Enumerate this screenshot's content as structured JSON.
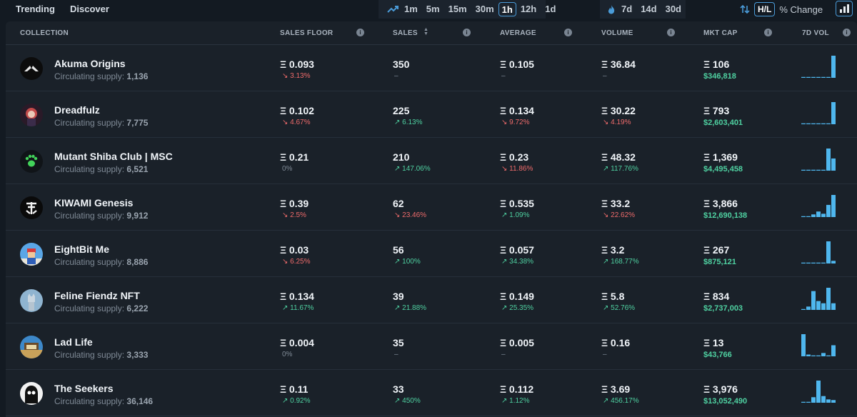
{
  "nav": {
    "trending": "Trending",
    "discover": "Discover"
  },
  "timeframes": [
    "1m",
    "5m",
    "15m",
    "30m",
    "1h",
    "12h",
    "1d"
  ],
  "timeframes_active": "1h",
  "periods": [
    "7d",
    "14d",
    "30d"
  ],
  "controls": {
    "hl": "H/L",
    "pct_change": "% Change"
  },
  "colors": {
    "up": "#4fd1a1",
    "down": "#ef6b6b",
    "accent": "#4a9bd8",
    "spark": "#4fb7ee"
  },
  "columns": {
    "collection": "COLLECTION",
    "sales_floor": "SALES FLOOR",
    "sales": "SALES",
    "average": "AVERAGE",
    "volume": "VOLUME",
    "mkt_cap": "MKT CAP",
    "vol7d": "7D VOL"
  },
  "supply_label": "Circulating supply:",
  "rows": [
    {
      "name": "Akuma Origins",
      "supply": "1,136",
      "floor": "Ξ 0.093",
      "floor_chg": "↘ 3.13%",
      "floor_dir": "down",
      "sales": "350",
      "sales_chg": "–",
      "sales_dir": "flat",
      "avg": "Ξ 0.105",
      "avg_chg": "–",
      "avg_dir": "flat",
      "vol": "Ξ 36.84",
      "vol_chg": "–",
      "vol_dir": "flat",
      "cap": "Ξ 106",
      "cap_usd": "$346,818",
      "spark": [
        0.04,
        0.04,
        0.04,
        0.04,
        0.04,
        0.04,
        1.0
      ]
    },
    {
      "name": "Dreadfulz",
      "supply": "7,775",
      "floor": "Ξ 0.102",
      "floor_chg": "↘ 4.67%",
      "floor_dir": "down",
      "sales": "225",
      "sales_chg": "↗ 6.13%",
      "sales_dir": "up",
      "avg": "Ξ 0.134",
      "avg_chg": "↘ 9.72%",
      "avg_dir": "down",
      "vol": "Ξ 30.22",
      "vol_chg": "↘ 4.19%",
      "vol_dir": "down",
      "cap": "Ξ 793",
      "cap_usd": "$2,603,401",
      "spark": [
        0.04,
        0.04,
        0.04,
        0.04,
        0.04,
        0.04,
        1.0
      ]
    },
    {
      "name": "Mutant Shiba Club | MSC",
      "supply": "6,521",
      "floor": "Ξ 0.21",
      "floor_chg": "0%",
      "floor_dir": "flat",
      "sales": "210",
      "sales_chg": "↗ 147.06%",
      "sales_dir": "up",
      "avg": "Ξ 0.23",
      "avg_chg": "↘ 11.86%",
      "avg_dir": "down",
      "vol": "Ξ 48.32",
      "vol_chg": "↗ 117.76%",
      "vol_dir": "up",
      "cap": "Ξ 1,369",
      "cap_usd": "$4,495,458",
      "spark": [
        0.04,
        0.04,
        0.04,
        0.04,
        0.04,
        1.0,
        0.55
      ]
    },
    {
      "name": "KIWAMI Genesis",
      "supply": "9,912",
      "floor": "Ξ 0.39",
      "floor_chg": "↘ 2.5%",
      "floor_dir": "down",
      "sales": "62",
      "sales_chg": "↘ 23.46%",
      "sales_dir": "down",
      "avg": "Ξ 0.535",
      "avg_chg": "↗ 1.09%",
      "avg_dir": "up",
      "vol": "Ξ 33.2",
      "vol_chg": "↘ 22.62%",
      "vol_dir": "down",
      "cap": "Ξ 3,866",
      "cap_usd": "$12,690,138",
      "spark": [
        0.04,
        0.04,
        0.12,
        0.25,
        0.15,
        0.55,
        1.0
      ]
    },
    {
      "name": "EightBit Me",
      "supply": "8,886",
      "floor": "Ξ 0.03",
      "floor_chg": "↘ 6.25%",
      "floor_dir": "down",
      "sales": "56",
      "sales_chg": "↗ 100%",
      "sales_dir": "up",
      "avg": "Ξ 0.057",
      "avg_chg": "↗ 34.38%",
      "avg_dir": "up",
      "vol": "Ξ 3.2",
      "vol_chg": "↗ 168.77%",
      "vol_dir": "up",
      "cap": "Ξ 267",
      "cap_usd": "$875,121",
      "spark": [
        0.04,
        0.04,
        0.04,
        0.04,
        0.04,
        1.0,
        0.12
      ]
    },
    {
      "name": "Feline Fiendz NFT",
      "supply": "6,222",
      "floor": "Ξ 0.134",
      "floor_chg": "↗ 11.67%",
      "floor_dir": "up",
      "sales": "39",
      "sales_chg": "↗ 21.88%",
      "sales_dir": "up",
      "avg": "Ξ 0.149",
      "avg_chg": "↗ 25.35%",
      "avg_dir": "up",
      "vol": "Ξ 5.8",
      "vol_chg": "↗ 52.76%",
      "vol_dir": "up",
      "cap": "Ξ 834",
      "cap_usd": "$2,737,003",
      "spark": [
        0.04,
        0.15,
        0.85,
        0.4,
        0.3,
        1.0,
        0.3
      ]
    },
    {
      "name": "Lad Life",
      "supply": "3,333",
      "floor": "Ξ 0.004",
      "floor_chg": "0%",
      "floor_dir": "flat",
      "sales": "35",
      "sales_chg": "–",
      "sales_dir": "flat",
      "avg": "Ξ 0.005",
      "avg_chg": "–",
      "avg_dir": "flat",
      "vol": "Ξ 0.16",
      "vol_chg": "–",
      "vol_dir": "flat",
      "cap": "Ξ 13",
      "cap_usd": "$43,766",
      "spark": [
        1.0,
        0.08,
        0.04,
        0.04,
        0.15,
        0.04,
        0.5
      ]
    },
    {
      "name": "The Seekers",
      "supply": "36,146",
      "floor": "Ξ 0.11",
      "floor_chg": "↗ 0.92%",
      "floor_dir": "up",
      "sales": "33",
      "sales_chg": "↗ 450%",
      "sales_dir": "up",
      "avg": "Ξ 0.112",
      "avg_chg": "↗ 1.12%",
      "avg_dir": "up",
      "vol": "Ξ 3.69",
      "vol_chg": "↗ 456.17%",
      "vol_dir": "up",
      "cap": "Ξ 3,976",
      "cap_usd": "$13,052,490",
      "spark": [
        0.04,
        0.04,
        0.25,
        1.0,
        0.3,
        0.15,
        0.12
      ]
    }
  ]
}
